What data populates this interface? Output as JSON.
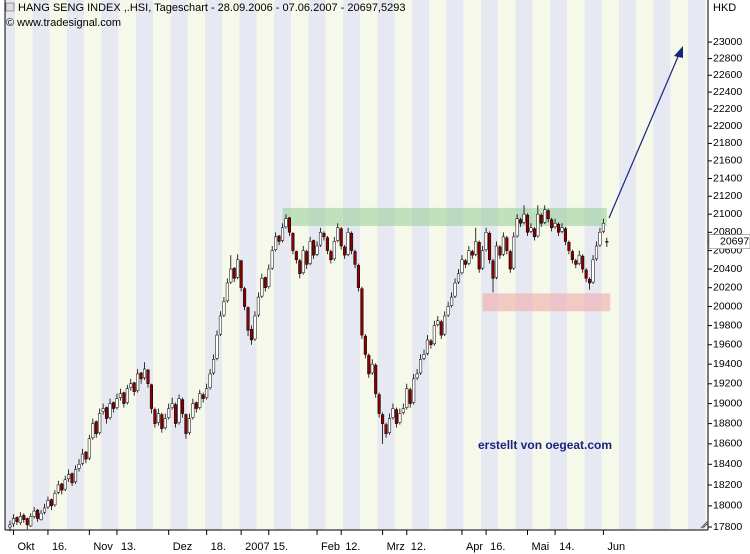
{
  "chart_data": {
    "type": "candlestick",
    "title": "HANG SENG INDEX ,.HSI, Tageschart - 28.09.2006 - 07.06.2007 - 20697,5293",
    "source": "© www.tradesignal.com",
    "y_unit": "HKD",
    "annotation": "erstellt von oegeat.com",
    "log_scale": true,
    "up_color": "#ffffff",
    "down_color": "#8b0000",
    "ylim": [
      17772,
      23517
    ],
    "yticks": [
      17800,
      18000,
      18200,
      18400,
      18600,
      18800,
      19000,
      19200,
      19400,
      19600,
      19800,
      20000,
      20200,
      20400,
      20600,
      20800,
      21000,
      21200,
      21400,
      21600,
      21800,
      22000,
      22200,
      22400,
      22600,
      22800,
      23000
    ],
    "last_price": {
      "value": 20697.5293,
      "label": "20697"
    },
    "zones": [
      {
        "ylim": [
          20870,
          21070
        ],
        "x": [
          79,
          173
        ],
        "color": "rgba(150,205,150,0.55)"
      },
      {
        "ylim": [
          19950,
          20140
        ],
        "x": [
          137,
          174
        ],
        "color": "rgba(240,170,170,0.6)"
      }
    ],
    "categories": [
      null,
      "Okt",
      null,
      null,
      null,
      null,
      null,
      null,
      null,
      null,
      null,
      "16.",
      null,
      null,
      null,
      null,
      null,
      null,
      null,
      null,
      null,
      null,
      null,
      "Nov",
      null,
      null,
      null,
      null,
      null,
      null,
      null,
      "13.",
      null,
      null,
      null,
      null,
      null,
      null,
      null,
      null,
      null,
      null,
      null,
      null,
      null,
      null,
      "Dez",
      null,
      null,
      null,
      null,
      null,
      null,
      null,
      null,
      null,
      null,
      "18.",
      null,
      null,
      null,
      null,
      null,
      null,
      null,
      null,
      null,
      "2007",
      null,
      null,
      null,
      null,
      null,
      null,
      null,
      "15.",
      null,
      null,
      null,
      null,
      null,
      null,
      null,
      null,
      null,
      null,
      null,
      null,
      null,
      "Feb",
      null,
      null,
      null,
      null,
      null,
      null,
      "12.",
      null,
      null,
      null,
      null,
      null,
      null,
      null,
      null,
      null,
      null,
      null,
      "Mrz",
      null,
      null,
      null,
      null,
      null,
      null,
      "12.",
      null,
      null,
      null,
      null,
      null,
      null,
      null,
      null,
      null,
      null,
      null,
      null,
      null,
      null,
      null,
      "Apr",
      null,
      null,
      null,
      null,
      null,
      null,
      "16.",
      null,
      null,
      null,
      null,
      null,
      null,
      null,
      null,
      null,
      null,
      null,
      "Mai",
      null,
      null,
      null,
      null,
      null,
      null,
      null,
      "14.",
      null,
      null,
      null,
      null,
      null,
      null,
      null,
      null,
      null,
      null,
      null,
      null,
      null,
      "Jun",
      null
    ],
    "ohlc": [
      [
        17800,
        17860,
        17760,
        17820
      ],
      [
        17830,
        17920,
        17800,
        17880
      ],
      [
        17890,
        17900,
        17820,
        17850
      ],
      [
        17840,
        17940,
        17820,
        17900
      ],
      [
        17910,
        17930,
        17840,
        17870
      ],
      [
        17880,
        17890,
        17780,
        17820
      ],
      [
        17810,
        17930,
        17800,
        17900
      ],
      [
        17900,
        17990,
        17880,
        17950
      ],
      [
        17960,
        17970,
        17850,
        17880
      ],
      [
        17870,
        17960,
        17860,
        17930
      ],
      [
        17940,
        18020,
        17920,
        17980
      ],
      [
        17990,
        18090,
        17970,
        18050
      ],
      [
        18060,
        18070,
        17960,
        18000
      ],
      [
        18010,
        18150,
        17990,
        18120
      ],
      [
        18130,
        18240,
        18110,
        18200
      ],
      [
        18210,
        18220,
        18110,
        18150
      ],
      [
        18160,
        18290,
        18140,
        18250
      ],
      [
        18260,
        18350,
        18230,
        18300
      ],
      [
        18310,
        18320,
        18190,
        18220
      ],
      [
        18230,
        18390,
        18210,
        18350
      ],
      [
        18360,
        18450,
        18330,
        18400
      ],
      [
        18410,
        18550,
        18390,
        18500
      ],
      [
        18520,
        18530,
        18410,
        18450
      ],
      [
        18460,
        18690,
        18440,
        18650
      ],
      [
        18660,
        18850,
        18640,
        18800
      ],
      [
        18820,
        18830,
        18660,
        18700
      ],
      [
        18710,
        18950,
        18690,
        18900
      ],
      [
        18920,
        19000,
        18890,
        18950
      ],
      [
        18960,
        18970,
        18800,
        18850
      ],
      [
        18860,
        19050,
        18840,
        19000
      ],
      [
        19010,
        19020,
        18910,
        18950
      ],
      [
        18960,
        19100,
        18940,
        19050
      ],
      [
        19060,
        19150,
        19030,
        19100
      ],
      [
        19110,
        19120,
        18960,
        19000
      ],
      [
        19010,
        19190,
        18990,
        19150
      ],
      [
        19160,
        19250,
        19130,
        19200
      ],
      [
        19210,
        19220,
        19080,
        19120
      ],
      [
        19130,
        19350,
        19110,
        19300
      ],
      [
        19310,
        19320,
        19200,
        19250
      ],
      [
        19260,
        19420,
        19240,
        19350
      ],
      [
        19340,
        19350,
        19160,
        19200
      ],
      [
        19190,
        19200,
        18900,
        18950
      ],
      [
        18940,
        18960,
        18760,
        18800
      ],
      [
        18810,
        18950,
        18780,
        18900
      ],
      [
        18890,
        18910,
        18710,
        18750
      ],
      [
        18760,
        18900,
        18740,
        18850
      ],
      [
        18860,
        19000,
        18840,
        18950
      ],
      [
        18960,
        19060,
        18940,
        19000
      ],
      [
        18990,
        19010,
        18760,
        18800
      ],
      [
        18810,
        19090,
        18790,
        19050
      ],
      [
        19040,
        19060,
        18860,
        18900
      ],
      [
        18890,
        18900,
        18650,
        18700
      ],
      [
        18710,
        18900,
        18690,
        18850
      ],
      [
        18860,
        19050,
        18840,
        19000
      ],
      [
        19010,
        19020,
        18910,
        18950
      ],
      [
        18960,
        19140,
        18940,
        19100
      ],
      [
        19090,
        19110,
        19010,
        19050
      ],
      [
        19060,
        19200,
        19040,
        19150
      ],
      [
        19160,
        19350,
        19140,
        19300
      ],
      [
        19310,
        19500,
        19290,
        19450
      ],
      [
        19460,
        19750,
        19440,
        19700
      ],
      [
        19710,
        19950,
        19690,
        19900
      ],
      [
        19910,
        20100,
        19890,
        20050
      ],
      [
        20060,
        20300,
        20040,
        20250
      ],
      [
        20260,
        20550,
        20240,
        20400
      ],
      [
        20410,
        20420,
        20260,
        20300
      ],
      [
        20310,
        20560,
        20290,
        20500
      ],
      [
        20490,
        20500,
        20160,
        20200
      ],
      [
        20190,
        20210,
        19960,
        20000
      ],
      [
        19990,
        20000,
        19690,
        19750
      ],
      [
        19760,
        19800,
        19600,
        19650
      ],
      [
        19660,
        19950,
        19640,
        19900
      ],
      [
        19910,
        20150,
        19890,
        20100
      ],
      [
        20110,
        20350,
        20090,
        20300
      ],
      [
        20310,
        20320,
        20160,
        20200
      ],
      [
        20210,
        20450,
        20190,
        20400
      ],
      [
        20410,
        20650,
        20390,
        20600
      ],
      [
        20610,
        20800,
        20590,
        20750
      ],
      [
        20760,
        20770,
        20660,
        20700
      ],
      [
        20710,
        20900,
        20690,
        20850
      ],
      [
        20860,
        21000,
        20840,
        20950
      ],
      [
        20960,
        20970,
        20760,
        20800
      ],
      [
        20790,
        20800,
        20560,
        20600
      ],
      [
        20590,
        20600,
        20460,
        20500
      ],
      [
        20490,
        20510,
        20300,
        20350
      ],
      [
        20360,
        20650,
        20340,
        20600
      ],
      [
        20590,
        20610,
        20400,
        20450
      ],
      [
        20460,
        20750,
        20440,
        20700
      ],
      [
        20710,
        20720,
        20510,
        20550
      ],
      [
        20560,
        20700,
        20540,
        20650
      ],
      [
        20660,
        20850,
        20640,
        20800
      ],
      [
        20790,
        20810,
        20710,
        20750
      ],
      [
        20740,
        20760,
        20560,
        20600
      ],
      [
        20590,
        20610,
        20460,
        20500
      ],
      [
        20510,
        20750,
        20490,
        20700
      ],
      [
        20710,
        20900,
        20690,
        20850
      ],
      [
        20840,
        20860,
        20610,
        20650
      ],
      [
        20640,
        20660,
        20510,
        20550
      ],
      [
        20560,
        20850,
        20540,
        20800
      ],
      [
        20790,
        20810,
        20560,
        20600
      ],
      [
        20590,
        20610,
        20410,
        20450
      ],
      [
        20440,
        20460,
        20160,
        20200
      ],
      [
        20190,
        20210,
        19660,
        19700
      ],
      [
        19690,
        19710,
        19460,
        19500
      ],
      [
        19490,
        19510,
        19260,
        19300
      ],
      [
        19310,
        19450,
        19290,
        19400
      ],
      [
        19390,
        19410,
        19060,
        19100
      ],
      [
        19090,
        19110,
        18860,
        18900
      ],
      [
        18890,
        18910,
        18600,
        18800
      ],
      [
        18790,
        18810,
        18660,
        18700
      ],
      [
        18710,
        18900,
        18690,
        18850
      ],
      [
        18860,
        19000,
        18840,
        18950
      ],
      [
        18940,
        18960,
        18760,
        18800
      ],
      [
        18810,
        18950,
        18790,
        18900
      ],
      [
        18910,
        19000,
        18890,
        18950
      ],
      [
        18960,
        19200,
        18940,
        19150
      ],
      [
        19140,
        19160,
        18960,
        19000
      ],
      [
        19010,
        19300,
        18990,
        19250
      ],
      [
        19260,
        19350,
        19240,
        19300
      ],
      [
        19310,
        19500,
        19290,
        19450
      ],
      [
        19460,
        19550,
        19440,
        19500
      ],
      [
        19510,
        19700,
        19490,
        19650
      ],
      [
        19640,
        19660,
        19560,
        19600
      ],
      [
        19610,
        19850,
        19590,
        19800
      ],
      [
        19810,
        19900,
        19790,
        19850
      ],
      [
        19840,
        19860,
        19660,
        19700
      ],
      [
        19710,
        19950,
        19690,
        19900
      ],
      [
        19910,
        20050,
        19890,
        20000
      ],
      [
        20010,
        20150,
        19990,
        20100
      ],
      [
        20110,
        20300,
        20090,
        20250
      ],
      [
        20260,
        20400,
        20240,
        20350
      ],
      [
        20360,
        20550,
        20340,
        20500
      ],
      [
        20490,
        20510,
        20410,
        20450
      ],
      [
        20460,
        20650,
        20440,
        20600
      ],
      [
        20590,
        20610,
        20510,
        20550
      ],
      [
        20560,
        20850,
        20540,
        20700
      ],
      [
        20690,
        20710,
        20360,
        20400
      ],
      [
        20410,
        20650,
        20390,
        20600
      ],
      [
        20610,
        20850,
        20590,
        20800
      ],
      [
        20790,
        20810,
        20460,
        20500
      ],
      [
        20490,
        20510,
        20150,
        20300
      ],
      [
        20310,
        20700,
        20290,
        20650
      ],
      [
        20640,
        20660,
        20510,
        20550
      ],
      [
        20560,
        20800,
        20540,
        20750
      ],
      [
        20740,
        20760,
        20560,
        20600
      ],
      [
        20590,
        20610,
        20360,
        20400
      ],
      [
        20410,
        20800,
        20390,
        20750
      ],
      [
        20760,
        21000,
        20740,
        20950
      ],
      [
        20940,
        20960,
        20860,
        20900
      ],
      [
        20910,
        21100,
        20890,
        21000
      ],
      [
        20990,
        21010,
        20760,
        20800
      ],
      [
        20810,
        20900,
        20790,
        20850
      ],
      [
        20840,
        20860,
        20710,
        20750
      ],
      [
        20760,
        21100,
        20740,
        21000
      ],
      [
        20990,
        21010,
        20860,
        20900
      ],
      [
        20910,
        21100,
        20890,
        21050
      ],
      [
        21040,
        21060,
        20910,
        20950
      ],
      [
        20940,
        20960,
        20810,
        20850
      ],
      [
        20860,
        20950,
        20840,
        20900
      ],
      [
        20890,
        20910,
        20760,
        20800
      ],
      [
        20810,
        20900,
        20790,
        20850
      ],
      [
        20840,
        20860,
        20660,
        20700
      ],
      [
        20690,
        20710,
        20560,
        20600
      ],
      [
        20590,
        20610,
        20460,
        20500
      ],
      [
        20490,
        20510,
        20410,
        20450
      ],
      [
        20460,
        20600,
        20440,
        20550
      ],
      [
        20540,
        20560,
        20360,
        20400
      ],
      [
        20390,
        20410,
        20260,
        20300
      ],
      [
        20290,
        20310,
        20180,
        20250
      ],
      [
        20260,
        20550,
        20240,
        20500
      ],
      [
        20510,
        20700,
        20490,
        20650
      ],
      [
        20660,
        20850,
        20640,
        20800
      ],
      [
        20810,
        20950,
        20790,
        20900
      ],
      [
        20700,
        20740,
        20640,
        20697.5293
      ]
    ]
  }
}
